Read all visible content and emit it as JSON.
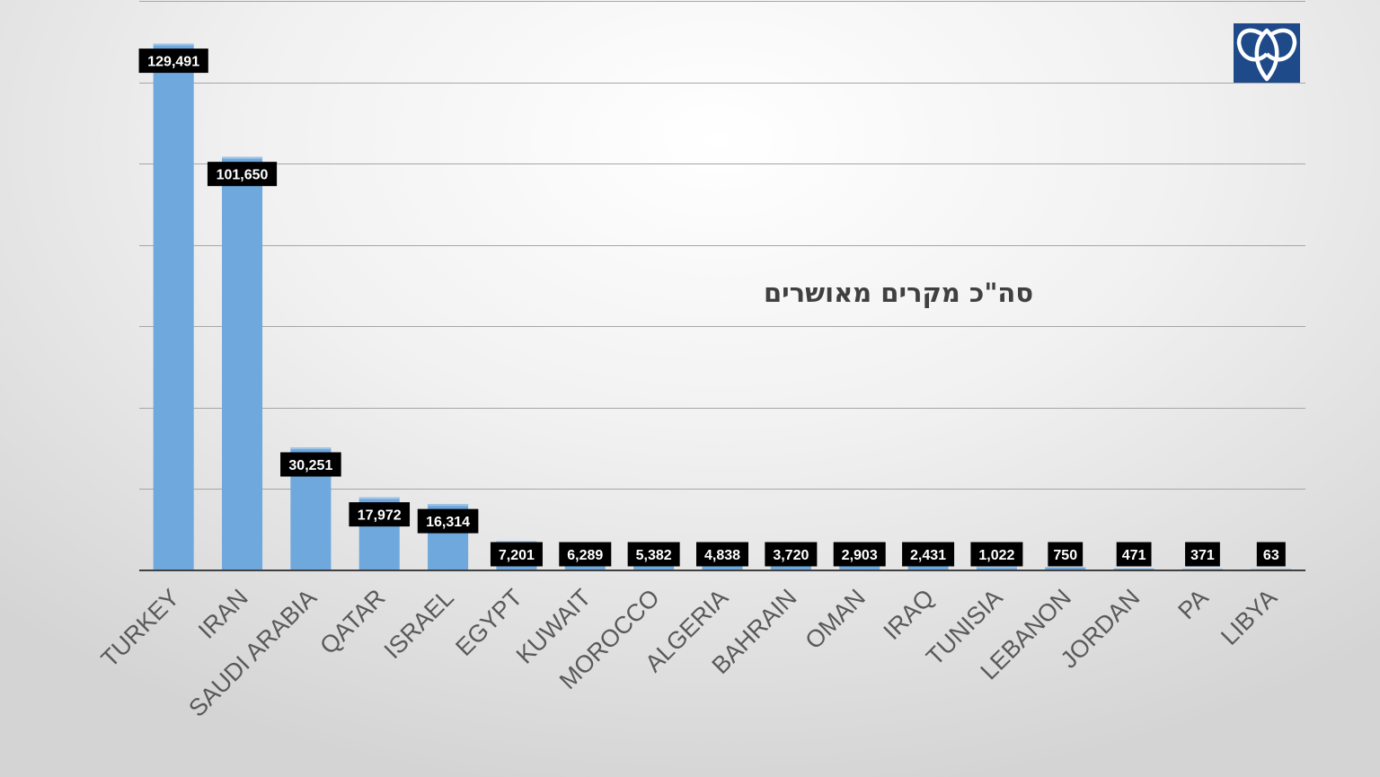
{
  "chart_data": {
    "type": "bar",
    "title": "סה\"כ מקרים מאושרים",
    "categories": [
      "TURKEY",
      "IRAN",
      "SAUDI ARABIA",
      "QATAR",
      "ISRAEL",
      "EGYPT",
      "KUWAIT",
      "MOROCCO",
      "ALGERIA",
      "BAHRAIN",
      "OMAN",
      "IRAQ",
      "TUNISIA",
      "LEBANON",
      "JORDAN",
      "PA",
      "LIBYA"
    ],
    "values": [
      129491,
      101650,
      30251,
      17972,
      16314,
      7201,
      6289,
      5382,
      4838,
      3720,
      2903,
      2431,
      1022,
      750,
      471,
      371,
      63
    ],
    "value_labels": [
      "129,491",
      "101,650",
      "30,251",
      "17,972",
      "16,314",
      "7,201",
      "6,289",
      "5,382",
      "4,838",
      "3,720",
      "2,903",
      "2,431",
      "1,022",
      "750",
      "471",
      "371",
      "63"
    ],
    "ylim": [
      0,
      140000
    ],
    "y_gridlines": [
      20000,
      40000,
      60000,
      80000,
      100000,
      120000,
      140000
    ],
    "grid": true,
    "legend": "none",
    "bar_color": "#6fa8dc",
    "label_box_color": "#000000"
  },
  "logo": {
    "icon": "triquetra-logo-icon",
    "color": "#1f4a8a"
  }
}
